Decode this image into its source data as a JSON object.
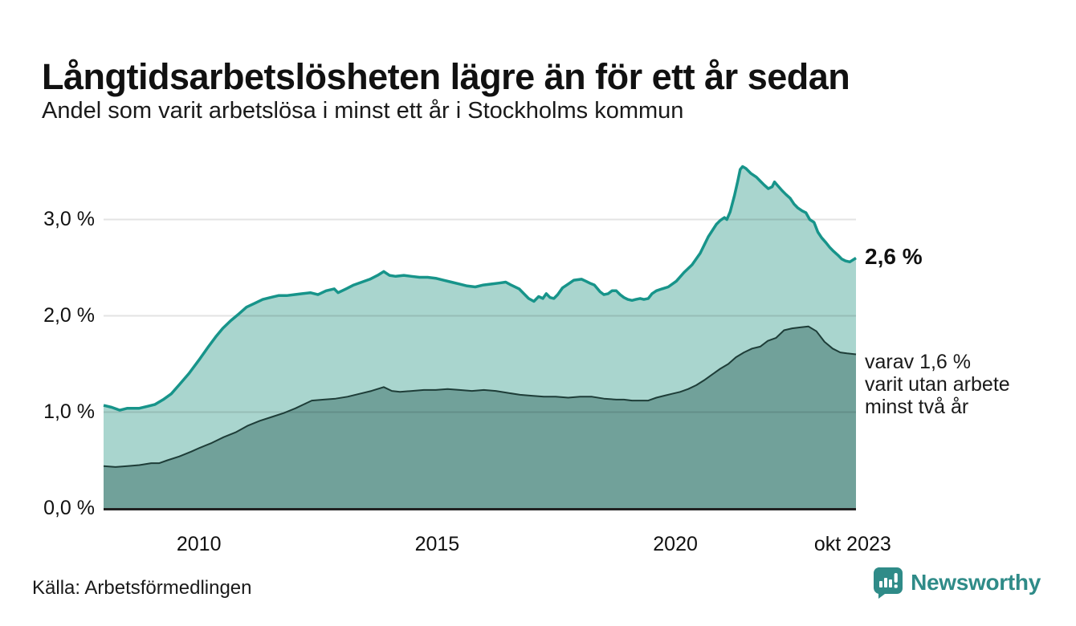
{
  "header": {
    "title": "Långtidsarbetslösheten lägre än för ett år sedan",
    "subtitle": "Andel som varit arbetslösa i minst ett år i Stockholms kommun"
  },
  "chart_data": {
    "type": "area",
    "title": "Långtidsarbetslösheten lägre än för ett år sedan",
    "subtitle": "Andel som varit arbetslösa i minst ett år i Stockholms kommun",
    "unit": "%",
    "xlim": [
      2008.0,
      2023.79
    ],
    "ylim": [
      0,
      3.6
    ],
    "grid": "horizontal",
    "colors": {
      "line_total": "#17948a",
      "fill_total": "#a9d5ce",
      "line_two_years": "#1e3d38",
      "fill_two_years": "#71a19a",
      "axis": "#222222",
      "gridline": "rgba(0,0,0,0.11)"
    },
    "y_ticks": [
      {
        "label": "0,0 %",
        "v": 0
      },
      {
        "label": "1,0 %",
        "v": 1
      },
      {
        "label": "2,0 %",
        "v": 2
      },
      {
        "label": "3,0 %",
        "v": 3
      }
    ],
    "x_ticks": [
      {
        "label": "2010",
        "t": 2010.0
      },
      {
        "label": "2015",
        "t": 2015.0
      },
      {
        "label": "2020",
        "t": 2020.0
      },
      {
        "label": "okt 2023",
        "t": 2023.72
      }
    ],
    "series": [
      {
        "name": "arbetslösa minst ett år",
        "end_value": 2.6,
        "points": [
          [
            2008.0,
            1.07
          ],
          [
            2008.17,
            1.05
          ],
          [
            2008.34,
            1.02
          ],
          [
            2008.5,
            1.04
          ],
          [
            2008.75,
            1.04
          ],
          [
            2008.92,
            1.06
          ],
          [
            2009.08,
            1.08
          ],
          [
            2009.25,
            1.13
          ],
          [
            2009.42,
            1.19
          ],
          [
            2009.58,
            1.28
          ],
          [
            2009.79,
            1.4
          ],
          [
            2010.0,
            1.54
          ],
          [
            2010.2,
            1.68
          ],
          [
            2010.35,
            1.78
          ],
          [
            2010.5,
            1.87
          ],
          [
            2010.67,
            1.95
          ],
          [
            2010.84,
            2.02
          ],
          [
            2011.0,
            2.09
          ],
          [
            2011.17,
            2.13
          ],
          [
            2011.34,
            2.17
          ],
          [
            2011.5,
            2.19
          ],
          [
            2011.67,
            2.21
          ],
          [
            2011.84,
            2.21
          ],
          [
            2012.0,
            2.22
          ],
          [
            2012.17,
            2.23
          ],
          [
            2012.34,
            2.24
          ],
          [
            2012.5,
            2.22
          ],
          [
            2012.67,
            2.26
          ],
          [
            2012.84,
            2.28
          ],
          [
            2012.92,
            2.24
          ],
          [
            2013.09,
            2.28
          ],
          [
            2013.25,
            2.32
          ],
          [
            2013.42,
            2.35
          ],
          [
            2013.59,
            2.38
          ],
          [
            2013.75,
            2.42
          ],
          [
            2013.88,
            2.46
          ],
          [
            2014.0,
            2.42
          ],
          [
            2014.13,
            2.41
          ],
          [
            2014.3,
            2.42
          ],
          [
            2014.46,
            2.41
          ],
          [
            2014.63,
            2.4
          ],
          [
            2014.8,
            2.4
          ],
          [
            2014.97,
            2.39
          ],
          [
            2015.13,
            2.37
          ],
          [
            2015.3,
            2.35
          ],
          [
            2015.47,
            2.33
          ],
          [
            2015.63,
            2.31
          ],
          [
            2015.8,
            2.3
          ],
          [
            2015.97,
            2.32
          ],
          [
            2016.14,
            2.33
          ],
          [
            2016.3,
            2.34
          ],
          [
            2016.44,
            2.35
          ],
          [
            2016.55,
            2.32
          ],
          [
            2016.72,
            2.28
          ],
          [
            2016.84,
            2.22
          ],
          [
            2016.92,
            2.18
          ],
          [
            2017.03,
            2.15
          ],
          [
            2017.13,
            2.2
          ],
          [
            2017.22,
            2.18
          ],
          [
            2017.29,
            2.23
          ],
          [
            2017.37,
            2.19
          ],
          [
            2017.45,
            2.18
          ],
          [
            2017.53,
            2.22
          ],
          [
            2017.63,
            2.29
          ],
          [
            2017.75,
            2.33
          ],
          [
            2017.87,
            2.37
          ],
          [
            2018.03,
            2.38
          ],
          [
            2018.12,
            2.36
          ],
          [
            2018.2,
            2.34
          ],
          [
            2018.3,
            2.32
          ],
          [
            2018.42,
            2.25
          ],
          [
            2018.5,
            2.22
          ],
          [
            2018.59,
            2.23
          ],
          [
            2018.67,
            2.26
          ],
          [
            2018.76,
            2.26
          ],
          [
            2018.84,
            2.22
          ],
          [
            2018.92,
            2.19
          ],
          [
            2019.0,
            2.17
          ],
          [
            2019.09,
            2.16
          ],
          [
            2019.17,
            2.17
          ],
          [
            2019.26,
            2.18
          ],
          [
            2019.34,
            2.17
          ],
          [
            2019.43,
            2.18
          ],
          [
            2019.51,
            2.23
          ],
          [
            2019.6,
            2.26
          ],
          [
            2019.72,
            2.28
          ],
          [
            2019.85,
            2.3
          ],
          [
            2020.02,
            2.36
          ],
          [
            2020.18,
            2.45
          ],
          [
            2020.35,
            2.53
          ],
          [
            2020.52,
            2.65
          ],
          [
            2020.69,
            2.82
          ],
          [
            2020.86,
            2.95
          ],
          [
            2020.94,
            2.99
          ],
          [
            2021.03,
            3.02
          ],
          [
            2021.08,
            3.0
          ],
          [
            2021.15,
            3.08
          ],
          [
            2021.24,
            3.25
          ],
          [
            2021.31,
            3.4
          ],
          [
            2021.36,
            3.52
          ],
          [
            2021.41,
            3.55
          ],
          [
            2021.48,
            3.53
          ],
          [
            2021.58,
            3.48
          ],
          [
            2021.7,
            3.44
          ],
          [
            2021.78,
            3.4
          ],
          [
            2021.86,
            3.36
          ],
          [
            2021.95,
            3.32
          ],
          [
            2022.03,
            3.34
          ],
          [
            2022.08,
            3.39
          ],
          [
            2022.15,
            3.35
          ],
          [
            2022.24,
            3.3
          ],
          [
            2022.32,
            3.26
          ],
          [
            2022.41,
            3.22
          ],
          [
            2022.49,
            3.16
          ],
          [
            2022.57,
            3.12
          ],
          [
            2022.66,
            3.09
          ],
          [
            2022.74,
            3.07
          ],
          [
            2022.82,
            3.0
          ],
          [
            2022.91,
            2.97
          ],
          [
            2022.99,
            2.87
          ],
          [
            2023.07,
            2.81
          ],
          [
            2023.16,
            2.76
          ],
          [
            2023.24,
            2.71
          ],
          [
            2023.32,
            2.67
          ],
          [
            2023.41,
            2.63
          ],
          [
            2023.49,
            2.59
          ],
          [
            2023.57,
            2.57
          ],
          [
            2023.66,
            2.56
          ],
          [
            2023.79,
            2.6
          ]
        ]
      },
      {
        "name": "varav utan arbete minst två år",
        "end_value": 1.6,
        "points": [
          [
            2008.0,
            0.44
          ],
          [
            2008.25,
            0.43
          ],
          [
            2008.5,
            0.44
          ],
          [
            2008.75,
            0.45
          ],
          [
            2009.0,
            0.47
          ],
          [
            2009.17,
            0.47
          ],
          [
            2009.34,
            0.5
          ],
          [
            2009.59,
            0.54
          ],
          [
            2009.84,
            0.59
          ],
          [
            2010.02,
            0.63
          ],
          [
            2010.27,
            0.68
          ],
          [
            2010.52,
            0.74
          ],
          [
            2010.77,
            0.79
          ],
          [
            2011.03,
            0.86
          ],
          [
            2011.28,
            0.91
          ],
          [
            2011.53,
            0.95
          ],
          [
            2011.78,
            0.99
          ],
          [
            2012.03,
            1.04
          ],
          [
            2012.2,
            1.08
          ],
          [
            2012.37,
            1.12
          ],
          [
            2012.62,
            1.13
          ],
          [
            2012.87,
            1.14
          ],
          [
            2013.12,
            1.16
          ],
          [
            2013.37,
            1.19
          ],
          [
            2013.62,
            1.22
          ],
          [
            2013.88,
            1.26
          ],
          [
            2014.05,
            1.22
          ],
          [
            2014.22,
            1.21
          ],
          [
            2014.47,
            1.22
          ],
          [
            2014.72,
            1.23
          ],
          [
            2014.97,
            1.23
          ],
          [
            2015.22,
            1.24
          ],
          [
            2015.47,
            1.23
          ],
          [
            2015.73,
            1.22
          ],
          [
            2015.98,
            1.23
          ],
          [
            2016.23,
            1.22
          ],
          [
            2016.48,
            1.2
          ],
          [
            2016.74,
            1.18
          ],
          [
            2016.99,
            1.17
          ],
          [
            2017.24,
            1.16
          ],
          [
            2017.49,
            1.16
          ],
          [
            2017.75,
            1.15
          ],
          [
            2018.0,
            1.16
          ],
          [
            2018.25,
            1.16
          ],
          [
            2018.5,
            1.14
          ],
          [
            2018.76,
            1.13
          ],
          [
            2018.92,
            1.13
          ],
          [
            2019.09,
            1.12
          ],
          [
            2019.26,
            1.12
          ],
          [
            2019.43,
            1.12
          ],
          [
            2019.6,
            1.15
          ],
          [
            2019.76,
            1.17
          ],
          [
            2019.93,
            1.19
          ],
          [
            2020.1,
            1.21
          ],
          [
            2020.27,
            1.24
          ],
          [
            2020.44,
            1.28
          ],
          [
            2020.6,
            1.33
          ],
          [
            2020.77,
            1.39
          ],
          [
            2020.94,
            1.45
          ],
          [
            2021.11,
            1.5
          ],
          [
            2021.27,
            1.57
          ],
          [
            2021.44,
            1.62
          ],
          [
            2021.61,
            1.66
          ],
          [
            2021.78,
            1.68
          ],
          [
            2021.94,
            1.74
          ],
          [
            2022.11,
            1.77
          ],
          [
            2022.28,
            1.85
          ],
          [
            2022.45,
            1.87
          ],
          [
            2022.62,
            1.88
          ],
          [
            2022.79,
            1.89
          ],
          [
            2022.96,
            1.84
          ],
          [
            2023.13,
            1.73
          ],
          [
            2023.3,
            1.66
          ],
          [
            2023.46,
            1.62
          ],
          [
            2023.6,
            1.61
          ],
          [
            2023.79,
            1.6
          ]
        ]
      }
    ],
    "annotations": {
      "end_value_label": "2,6 %",
      "secondary_label": "varav 1,6 %\nvarit utan arbete\nminst två år"
    },
    "legend": "none"
  },
  "footer": {
    "source": "Källa: Arbetsförmedlingen",
    "logo_text": "Newsworthy",
    "logo_color": "#2f8b88"
  }
}
